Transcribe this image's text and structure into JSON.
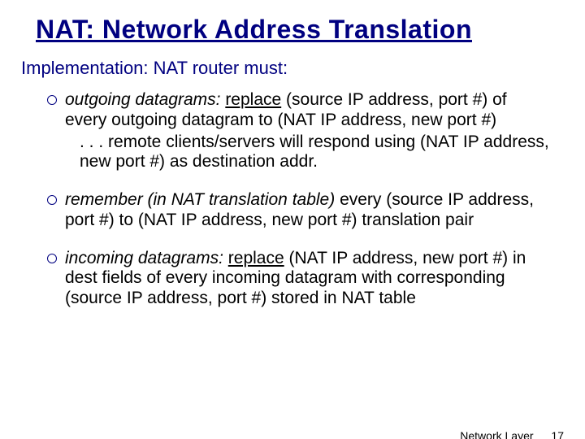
{
  "title": "NAT: Network Address Translation",
  "subtitle_lead": "Implementation:",
  "subtitle_rest": " NAT router must:",
  "bullets": [
    {
      "lead": "outgoing datagrams:",
      "action": "replace",
      "rest1": " (source IP address, port #) of every outgoing datagram to (NAT IP address, new port #)",
      "sub": ". . . remote clients/servers will respond using (NAT IP address, new port #) as destination addr."
    },
    {
      "lead": "remember (in NAT translation table)",
      "rest1": " every (source IP address, port #)  to (NAT IP address, new port #) translation pair"
    },
    {
      "lead": "incoming datagrams:",
      "action": "replace",
      "rest1": " (NAT IP address, new port #) in dest fields of every incoming datagram with corresponding (source IP address, port #) stored in NAT table"
    }
  ],
  "footer_label": "Network Layer",
  "page_number": "17",
  "colors": {
    "title_color": "#000080",
    "text_color": "#000000",
    "background": "#ffffff"
  }
}
